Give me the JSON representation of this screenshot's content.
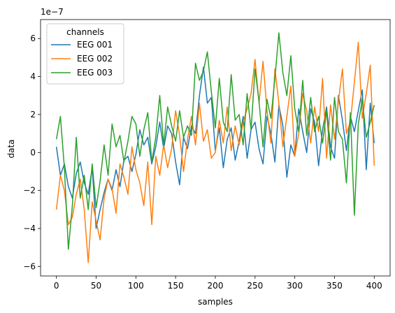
{
  "chart_data": {
    "type": "line",
    "xlabel": "samples",
    "ylabel": "data",
    "offset_text": "1e−7",
    "xlim": [
      -20,
      420
    ],
    "ylim": [
      -6.5,
      7.0
    ],
    "xticks": [
      0,
      50,
      100,
      150,
      200,
      250,
      300,
      350,
      400
    ],
    "yticks": [
      -6,
      -4,
      -2,
      0,
      2,
      4,
      6
    ],
    "grid": false,
    "legend": {
      "title": "channels",
      "placement": "upper-left"
    },
    "series": [
      {
        "name": "EEG 001",
        "color": "#1f77b4",
        "x": [
          0,
          5,
          10,
          15,
          20,
          25,
          30,
          35,
          40,
          45,
          50,
          55,
          60,
          65,
          70,
          75,
          80,
          85,
          90,
          95,
          100,
          105,
          110,
          115,
          120,
          125,
          130,
          135,
          140,
          145,
          150,
          155,
          160,
          165,
          170,
          175,
          180,
          185,
          190,
          195,
          200,
          205,
          210,
          215,
          220,
          225,
          230,
          235,
          240,
          245,
          250,
          255,
          260,
          265,
          270,
          275,
          280,
          285,
          290,
          295,
          300,
          305,
          310,
          315,
          320,
          325,
          330,
          335,
          340,
          345,
          350,
          355,
          360,
          365,
          370,
          375,
          380,
          385,
          390,
          395,
          400
        ],
        "values": [
          0.3,
          -1.2,
          -0.6,
          -1.8,
          -2.4,
          -1.1,
          -0.5,
          -1.6,
          -2.2,
          -0.8,
          -4.0,
          -3.0,
          -2.1,
          -1.4,
          -2.0,
          -0.9,
          -1.8,
          -0.4,
          -0.2,
          -1.0,
          -0.1,
          1.2,
          0.4,
          0.8,
          -0.6,
          0.3,
          1.6,
          0.2,
          1.4,
          1.0,
          -0.5,
          -1.7,
          0.8,
          0.2,
          1.4,
          1.0,
          3.0,
          4.5,
          2.6,
          2.9,
          0.1,
          1.3,
          -0.8,
          0.7,
          1.3,
          -0.4,
          0.6,
          1.9,
          -0.3,
          1.2,
          1.6,
          0.2,
          -0.6,
          1.9,
          1.0,
          -0.5,
          2.5,
          1.4,
          -1.3,
          0.4,
          -0.2,
          2.3,
          1.1,
          0.0,
          2.3,
          1.6,
          -0.7,
          1.2,
          2.4,
          0.3,
          -0.3,
          3.0,
          1.7,
          0.1,
          1.9,
          1.1,
          2.2,
          3.3,
          -0.9,
          2.6,
          0.5
        ]
      },
      {
        "name": "EEG 002",
        "color": "#ff7f0e",
        "x": [
          0,
          5,
          10,
          15,
          20,
          25,
          30,
          35,
          40,
          45,
          50,
          55,
          60,
          65,
          70,
          75,
          80,
          85,
          90,
          95,
          100,
          105,
          110,
          115,
          120,
          125,
          130,
          135,
          140,
          145,
          150,
          155,
          160,
          165,
          170,
          175,
          180,
          185,
          190,
          195,
          200,
          205,
          210,
          215,
          220,
          225,
          230,
          235,
          240,
          245,
          250,
          255,
          260,
          265,
          270,
          275,
          280,
          285,
          290,
          295,
          300,
          305,
          310,
          315,
          320,
          325,
          330,
          335,
          340,
          345,
          350,
          355,
          360,
          365,
          370,
          375,
          380,
          385,
          390,
          395,
          400
        ],
        "values": [
          -3.0,
          -1.2,
          -2.0,
          -3.8,
          -3.4,
          -2.2,
          -1.4,
          -3.0,
          -5.8,
          -2.6,
          -3.6,
          -4.6,
          -2.4,
          -1.4,
          -1.9,
          -3.2,
          -0.6,
          -1.3,
          -2.2,
          0.3,
          -0.9,
          -1.6,
          -2.8,
          -0.5,
          -3.8,
          -0.2,
          -1.2,
          0.4,
          -0.8,
          0.2,
          2.2,
          0.9,
          -1.0,
          0.7,
          1.9,
          0.4,
          2.6,
          0.6,
          1.2,
          -0.3,
          0.0,
          1.7,
          0.5,
          2.4,
          0.1,
          1.4,
          0.4,
          1.6,
          2.3,
          3.1,
          4.9,
          2.6,
          4.8,
          2.2,
          0.5,
          4.4,
          2.6,
          0.3,
          1.9,
          3.5,
          -0.2,
          1.0,
          3.1,
          2.2,
          0.5,
          2.4,
          1.1,
          3.9,
          -0.3,
          2.5,
          0.7,
          2.7,
          4.4,
          1.0,
          1.6,
          3.7,
          5.8,
          1.8,
          3.1,
          4.6,
          -0.7
        ]
      },
      {
        "name": "EEG 003",
        "color": "#2ca02c",
        "x": [
          0,
          5,
          10,
          15,
          20,
          25,
          30,
          35,
          40,
          45,
          50,
          55,
          60,
          65,
          70,
          75,
          80,
          85,
          90,
          95,
          100,
          105,
          110,
          115,
          120,
          125,
          130,
          135,
          140,
          145,
          150,
          155,
          160,
          165,
          170,
          175,
          180,
          185,
          190,
          195,
          200,
          205,
          210,
          215,
          220,
          225,
          230,
          235,
          240,
          245,
          250,
          255,
          260,
          265,
          270,
          275,
          280,
          285,
          290,
          295,
          300,
          305,
          310,
          315,
          320,
          325,
          330,
          335,
          340,
          345,
          350,
          355,
          360,
          365,
          370,
          375,
          380,
          385,
          390,
          395,
          400
        ],
        "values": [
          0.7,
          1.9,
          -0.8,
          -5.1,
          -2.8,
          0.8,
          -2.4,
          -1.2,
          -3.0,
          -0.6,
          -2.9,
          -1.5,
          0.4,
          -1.2,
          1.5,
          0.3,
          0.9,
          -0.5,
          0.6,
          1.9,
          1.5,
          -0.2,
          1.2,
          2.1,
          -0.5,
          0.8,
          3.0,
          0.4,
          2.4,
          1.4,
          0.6,
          2.2,
          0.8,
          1.4,
          0.9,
          4.7,
          3.8,
          4.3,
          5.3,
          3.2,
          1.3,
          3.9,
          1.6,
          1.1,
          4.1,
          1.7,
          2.0,
          0.4,
          3.1,
          1.2,
          4.4,
          2.7,
          0.3,
          2.8,
          1.8,
          3.9,
          6.3,
          4.2,
          3.0,
          5.1,
          2.3,
          1.1,
          3.8,
          0.9,
          2.9,
          1.1,
          1.9,
          0.5,
          2.2,
          -0.4,
          2.9,
          1.1,
          0.7,
          -1.6,
          2.1,
          -3.3,
          1.5,
          2.8,
          0.8,
          1.6,
          2.5
        ]
      }
    ]
  }
}
